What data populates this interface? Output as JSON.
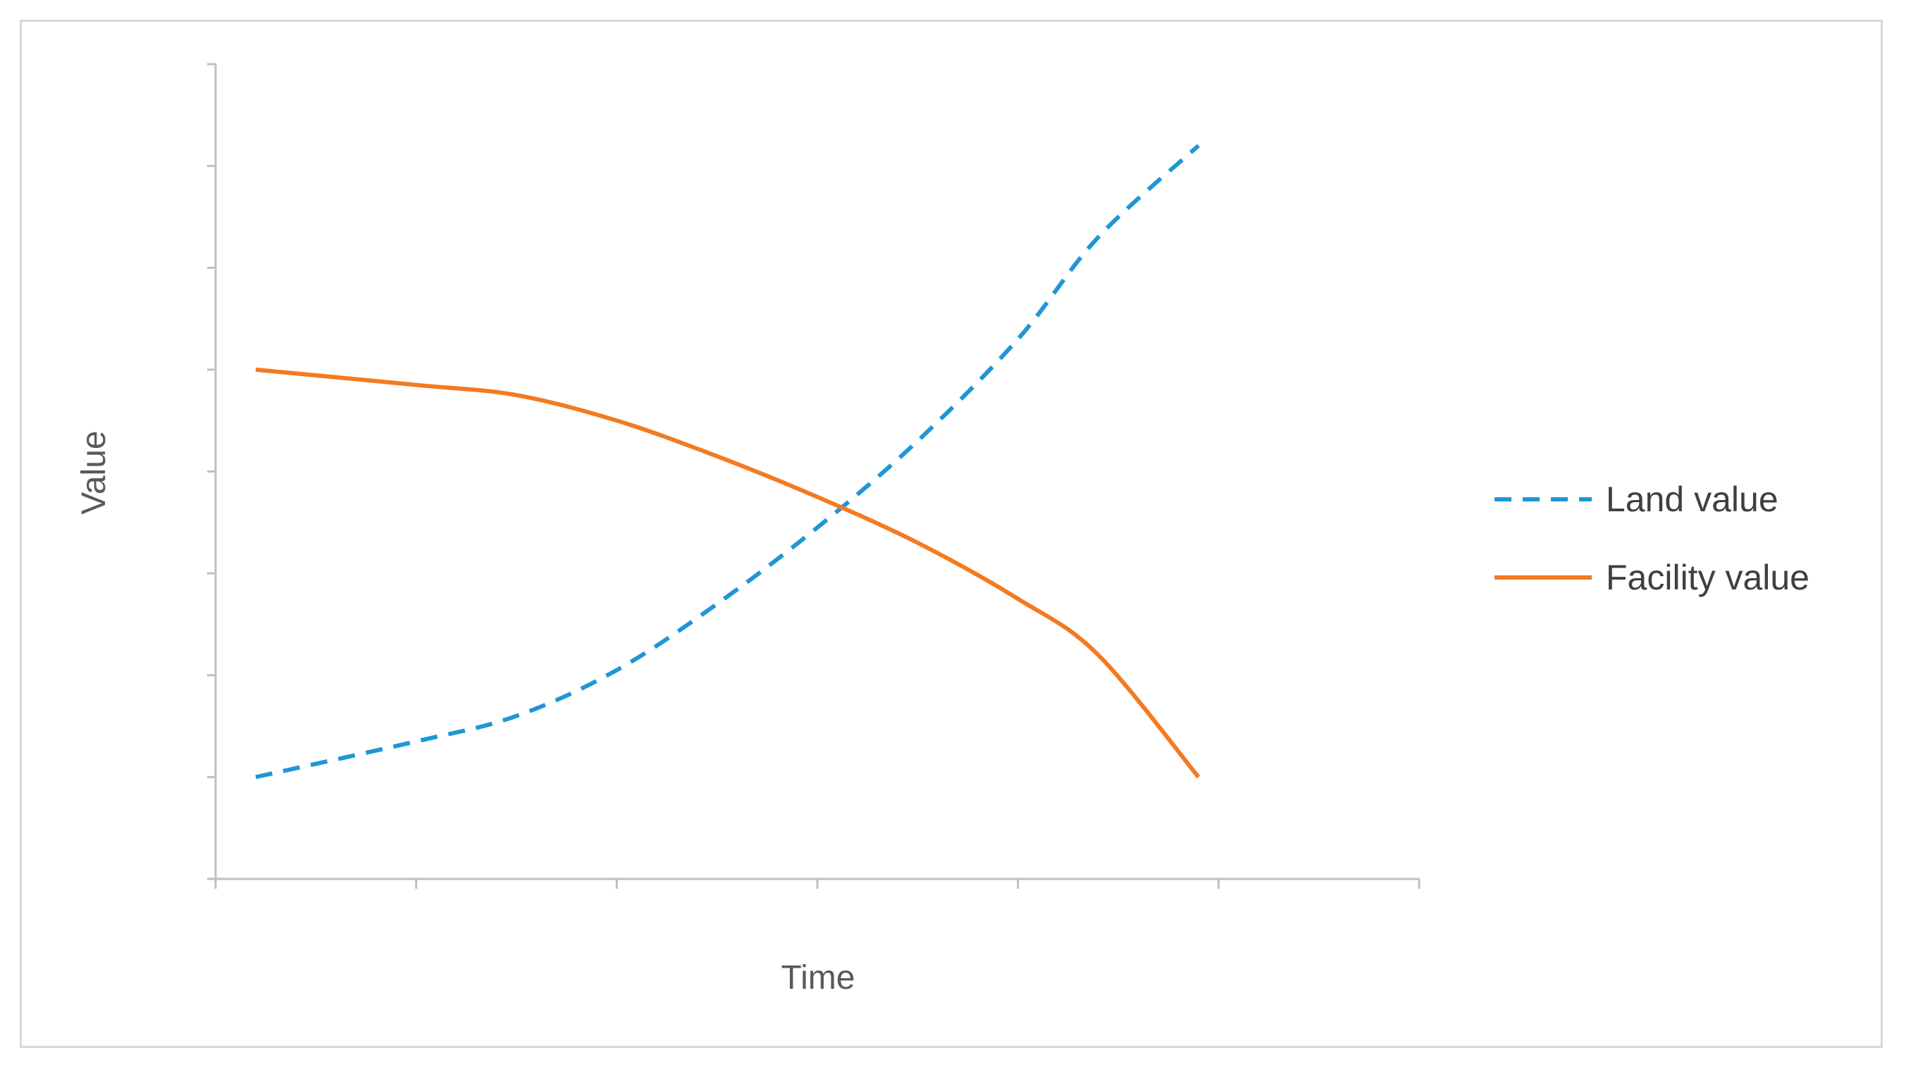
{
  "chart_data": {
    "type": "line",
    "title": "",
    "xlabel": "Time",
    "ylabel": "Value",
    "x_tick_count": 6,
    "y_tick_count": 8,
    "xlim": [
      0,
      6
    ],
    "ylim": [
      0,
      8
    ],
    "grid": false,
    "legend_position": "right",
    "series": [
      {
        "name": "Land value",
        "color": "#1f96d6",
        "line_style": "dashed",
        "x": [
          0.2,
          1.0,
          1.5,
          2.0,
          2.5,
          3.0,
          3.5,
          4.0,
          4.4,
          4.9
        ],
        "y": [
          1.0,
          1.35,
          1.6,
          2.05,
          2.7,
          3.45,
          4.3,
          5.3,
          6.3,
          7.2
        ]
      },
      {
        "name": "Facility value",
        "color": "#f47a20",
        "line_style": "solid",
        "x": [
          0.2,
          1.0,
          1.5,
          2.0,
          2.5,
          3.0,
          3.5,
          4.0,
          4.4,
          4.9
        ],
        "y": [
          5.0,
          4.85,
          4.75,
          4.5,
          4.15,
          3.75,
          3.3,
          2.75,
          2.2,
          1.0
        ]
      }
    ]
  }
}
